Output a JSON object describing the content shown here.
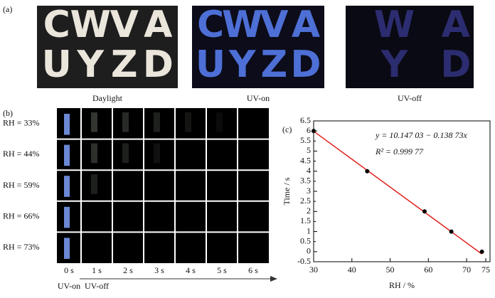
{
  "panel_a": {
    "label": "(a)",
    "images": [
      {
        "caption": "Daylight",
        "background": "#1e1e1e",
        "letter_color": "#ebe6dc",
        "letters": [
          [
            "C",
            "W",
            "V",
            "A"
          ],
          [
            "U",
            "Y",
            "Z",
            "D"
          ]
        ]
      },
      {
        "caption": "UV-on",
        "background": "#0c0c1a",
        "letter_color": "#4d6fd6",
        "letters": [
          [
            "C",
            "W",
            "V",
            "A"
          ],
          [
            "U",
            "Y",
            "Z",
            "D"
          ]
        ]
      },
      {
        "caption": "UV-off",
        "background": "#0a0a14",
        "letter_color": "#2c2c70",
        "letters": [
          [
            null,
            "W",
            null,
            "A"
          ],
          [
            null,
            "Y",
            null,
            "D"
          ]
        ]
      }
    ]
  },
  "panel_b": {
    "label": "(b)",
    "rows": [
      "RH = 33%",
      "RH = 44%",
      "RH = 59%",
      "RH = 66%",
      "RH = 73%"
    ],
    "columns": [
      "0 s",
      "1 s",
      "2 s",
      "3 s",
      "4 s",
      "5 s",
      "6 s"
    ],
    "uv_on": "UV-on",
    "uv_off": "UV-off"
  },
  "chart_data": {
    "type": "scatter",
    "label": "(c)",
    "xlabel": "RH / %",
    "ylabel": "Time / s",
    "annotations": [
      "y = 10.147 03 − 0.138 73x",
      "R² = 0.999 77"
    ],
    "series": [
      {
        "color": "#000000",
        "x": [
          30,
          44,
          59,
          66,
          74
        ],
        "values": [
          6,
          4,
          2,
          1,
          0
        ]
      },
      {
        "color": "#e0201b",
        "x": [
          30,
          74
        ],
        "values": [
          5.985,
          -0.119
        ],
        "style": "line"
      }
    ],
    "xlim": [
      30,
      75
    ],
    "xticks": [
      30,
      40,
      50,
      60,
      70,
      75
    ],
    "ylim": [
      -0.5,
      6.5
    ],
    "yticks": [
      -0.5,
      0,
      0.5,
      1,
      1.5,
      2,
      2.5,
      3,
      3.5,
      4,
      4.5,
      5,
      5.5,
      6,
      6.5
    ]
  }
}
